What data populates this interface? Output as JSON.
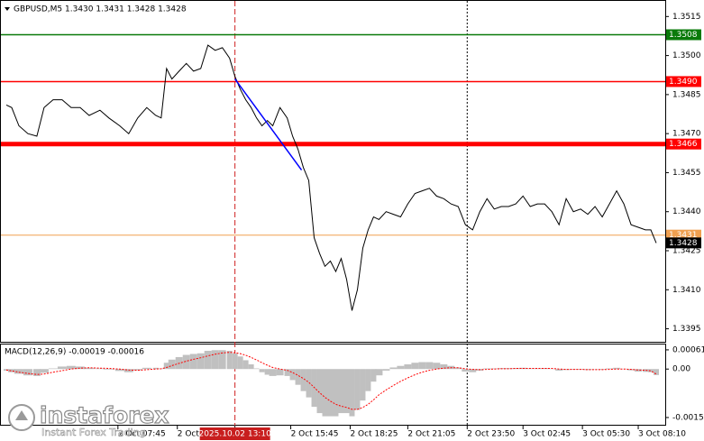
{
  "chart_data": [
    {
      "type": "line",
      "title": "GBPUSD,M5  1.3430 1.3431 1.3428 1.3428",
      "color": "#000000",
      "x": [
        3,
        6,
        10,
        15,
        20,
        24,
        29,
        34,
        39,
        44,
        49,
        55,
        60,
        66,
        71,
        76,
        81,
        86,
        89,
        92,
        95,
        99,
        103,
        107,
        111,
        115,
        119,
        123,
        127,
        130,
        133,
        136,
        139,
        142,
        145,
        148,
        151,
        155,
        159,
        162,
        165,
        168,
        171,
        174,
        177,
        180,
        183,
        186,
        189,
        192,
        195,
        198,
        201,
        204,
        207,
        210,
        214,
        218,
        222,
        226,
        230,
        234,
        238,
        242,
        246,
        250,
        254,
        258,
        262,
        266,
        270,
        274,
        278,
        282,
        286,
        290,
        294,
        298,
        302,
        306,
        310,
        314,
        318,
        322,
        326,
        330,
        334,
        338,
        342,
        346,
        350,
        354,
        358,
        361,
        364
      ],
      "values": [
        1.3481,
        1.348,
        1.3473,
        1.347,
        1.3469,
        1.348,
        1.3483,
        1.3483,
        1.348,
        1.348,
        1.3477,
        1.3479,
        1.3476,
        1.3473,
        1.347,
        1.3476,
        1.348,
        1.3477,
        1.3476,
        1.3495,
        1.3491,
        1.3494,
        1.3497,
        1.3494,
        1.3495,
        1.3504,
        1.3502,
        1.3503,
        1.3499,
        1.3492,
        1.3487,
        1.3483,
        1.348,
        1.3476,
        1.3473,
        1.3475,
        1.3473,
        1.348,
        1.3476,
        1.3469,
        1.3464,
        1.3457,
        1.3452,
        1.343,
        1.3424,
        1.3419,
        1.3421,
        1.3417,
        1.3422,
        1.3414,
        1.3402,
        1.341,
        1.3426,
        1.3433,
        1.3438,
        1.3437,
        1.344,
        1.3439,
        1.3438,
        1.3443,
        1.3447,
        1.3448,
        1.3449,
        1.3446,
        1.3445,
        1.3443,
        1.3442,
        1.3435,
        1.3433,
        1.344,
        1.3445,
        1.3441,
        1.3442,
        1.3442,
        1.3443,
        1.3446,
        1.3442,
        1.3443,
        1.3443,
        1.344,
        1.3435,
        1.3445,
        1.344,
        1.3441,
        1.3439,
        1.3442,
        1.3438,
        1.3443,
        1.3448,
        1.3443,
        1.3435,
        1.3434,
        1.3433,
        1.3433,
        1.3428
      ],
      "xlim": [
        0,
        369
      ],
      "ylim": [
        1.339,
        1.3521
      ],
      "yticks": [
        1.3515,
        {
          "value": 1.35,
          "label": "1.3500"
        },
        1.3485,
        {
          "value": 1.347,
          "label": "1.3470"
        },
        1.3455,
        {
          "value": 1.344,
          "label": "1.3440"
        },
        1.3425,
        {
          "value": 1.341,
          "label": "1.3410"
        },
        1.3395
      ],
      "xticks": [
        {
          "value": 65,
          "label": "2 Oct 07:45"
        },
        {
          "value": 98,
          "label": "2 Oct"
        },
        {
          "value": 130,
          "label": "2025.10.02 13:10",
          "highlight": true
        },
        {
          "value": 161,
          "label": "2 Oct 15:45"
        },
        {
          "value": 194,
          "label": "2 Oct 18:25"
        },
        {
          "value": 226,
          "label": "2 Oct 21:05"
        },
        {
          "value": 259,
          "label": "2 Oct 23:50",
          "cursor": true
        },
        {
          "value": 290,
          "label": "3 Oct 02:45"
        },
        {
          "value": 323,
          "label": "3 Oct 05:30"
        },
        {
          "value": 354,
          "label": "3 Oct 08:10"
        }
      ],
      "levels": [
        {
          "value": 1.3508,
          "color": "#0a7a0a",
          "width": 1.5
        },
        {
          "value": 1.349,
          "label": "1.3490",
          "color": "#ff0000",
          "width": 1.5
        },
        {
          "value": 1.3466,
          "color": "#ff0000",
          "width": 5
        },
        {
          "value": 1.3431,
          "color": "#f0a050",
          "width": 1
        },
        {
          "value": 1.3428,
          "color": "#000000"
        }
      ],
      "trendline": {
        "x": [
          130,
          167
        ],
        "y": [
          1.3491,
          1.3456
        ],
        "color": "#0000ff"
      }
    },
    {
      "type": "macd",
      "title": "MACD(12,26,9) -0.00019 -0.00016",
      "histogram": {
        "color": "#c0c0c0",
        "values": [
          -5e-05,
          -0.0001,
          -0.00015,
          -0.0002,
          -0.00022,
          -0.00012,
          2e-05,
          8e-05,
          0.0001,
          8e-05,
          4e-05,
          2e-05,
          -2e-05,
          -6e-05,
          -0.0001,
          -4e-05,
          4e-05,
          4e-05,
          2e-05,
          0.0002,
          0.0003,
          0.00038,
          0.00045,
          0.00048,
          0.0005,
          0.00058,
          0.0006,
          0.0006,
          0.00058,
          0.0005,
          0.0004,
          0.00028,
          0.00015,
          2e-05,
          -0.0001,
          -0.00018,
          -0.00022,
          -0.0002,
          -0.00022,
          -0.00035,
          -0.0005,
          -0.0007,
          -0.0009,
          -0.0012,
          -0.0014,
          -0.0015,
          -0.0015,
          -0.0015,
          -0.0014,
          -0.0014,
          -0.0015,
          -0.0013,
          -0.001,
          -0.0007,
          -0.0004,
          -0.0002,
          -5e-05,
          5e-05,
          0.0001,
          0.00015,
          0.0002,
          0.00022,
          0.00022,
          0.0002,
          0.00015,
          0.0001,
          5e-05,
          -8e-05,
          -0.0001,
          -5e-05,
          2e-05,
          2e-05,
          3e-05,
          3e-05,
          3e-05,
          4e-05,
          2e-05,
          2e-05,
          3e-05,
          1e-05,
          -5e-05,
          -3e-05,
          -2e-05,
          -2e-05,
          -3e-05,
          -1e-05,
          -2e-05,
          2e-05,
          4e-05,
          1e-05,
          -4e-05,
          -8e-05,
          -9e-05,
          -0.0001,
          -0.00019
        ]
      },
      "signal": {
        "color": "#ff0000",
        "values": [
          -3e-05,
          -6e-05,
          -0.0001,
          -0.00014,
          -0.00017,
          -0.00016,
          -0.0001,
          -5e-05,
          0,
          3e-05,
          4e-05,
          3e-05,
          2e-05,
          0,
          -3e-05,
          -4e-05,
          -2e-05,
          0,
          1e-05,
          5e-05,
          0.00011,
          0.00018,
          0.00025,
          0.00031,
          0.00036,
          0.00042,
          0.00047,
          0.00051,
          0.00053,
          0.00052,
          0.00049,
          0.00044,
          0.00037,
          0.00029,
          0.0002,
          0.00012,
          5e-05,
          0,
          -4e-05,
          -0.00011,
          -0.0002,
          -0.0003,
          -0.00042,
          -0.00058,
          -0.00075,
          -0.0009,
          -0.00102,
          -0.00112,
          -0.00118,
          -0.00122,
          -0.00128,
          -0.00128,
          -0.00122,
          -0.00112,
          -0.00098,
          -0.00082,
          -0.00066,
          -0.00052,
          -0.00039,
          -0.00028,
          -0.00018,
          -0.0001,
          -4e-05,
          0,
          3e-05,
          4e-05,
          4e-05,
          1e-05,
          -1e-05,
          -2e-05,
          -1e-05,
          0,
          1e-05,
          1e-05,
          2e-05,
          2e-05,
          2e-05,
          2e-05,
          2e-05,
          2e-05,
          0,
          -1e-05,
          -1e-05,
          -1e-05,
          -2e-05,
          -2e-05,
          -2e-05,
          -1e-05,
          0,
          0,
          -1e-05,
          -3e-05,
          -4e-05,
          -6e-05,
          -0.00016
        ]
      },
      "ylim": [
        -0.00177,
        0.00078
      ],
      "yticks": [
        0.00061,
        {
          "value": 0,
          "label": "0.00"
        },
        -0.00154
      ]
    }
  ],
  "logo": {
    "name": "instaforex",
    "tagline": "Instant Forex Trading"
  }
}
